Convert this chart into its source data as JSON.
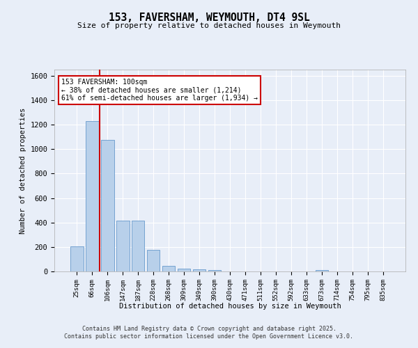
{
  "title": "153, FAVERSHAM, WEYMOUTH, DT4 9SL",
  "subtitle": "Size of property relative to detached houses in Weymouth",
  "xlabel": "Distribution of detached houses by size in Weymouth",
  "ylabel": "Number of detached properties",
  "categories": [
    "25sqm",
    "66sqm",
    "106sqm",
    "147sqm",
    "187sqm",
    "228sqm",
    "268sqm",
    "309sqm",
    "349sqm",
    "390sqm",
    "430sqm",
    "471sqm",
    "511sqm",
    "552sqm",
    "592sqm",
    "633sqm",
    "673sqm",
    "714sqm",
    "754sqm",
    "795sqm",
    "835sqm"
  ],
  "values": [
    205,
    1230,
    1075,
    415,
    415,
    175,
    48,
    25,
    15,
    12,
    0,
    0,
    0,
    0,
    0,
    0,
    12,
    0,
    0,
    0,
    0
  ],
  "bar_color": "#b8d0ea",
  "bar_edge_color": "#6699cc",
  "red_line_bar_index": 1.5,
  "annotation_text": "153 FAVERSHAM: 100sqm\n← 38% of detached houses are smaller (1,214)\n61% of semi-detached houses are larger (1,934) →",
  "annotation_box_color": "#ffffff",
  "annotation_box_edge_color": "#cc0000",
  "red_line_color": "#cc0000",
  "ylim": [
    0,
    1650
  ],
  "yticks": [
    0,
    200,
    400,
    600,
    800,
    1000,
    1200,
    1400,
    1600
  ],
  "background_color": "#e8eef8",
  "grid_color": "#ffffff",
  "footer_line1": "Contains HM Land Registry data © Crown copyright and database right 2025.",
  "footer_line2": "Contains public sector information licensed under the Open Government Licence v3.0."
}
